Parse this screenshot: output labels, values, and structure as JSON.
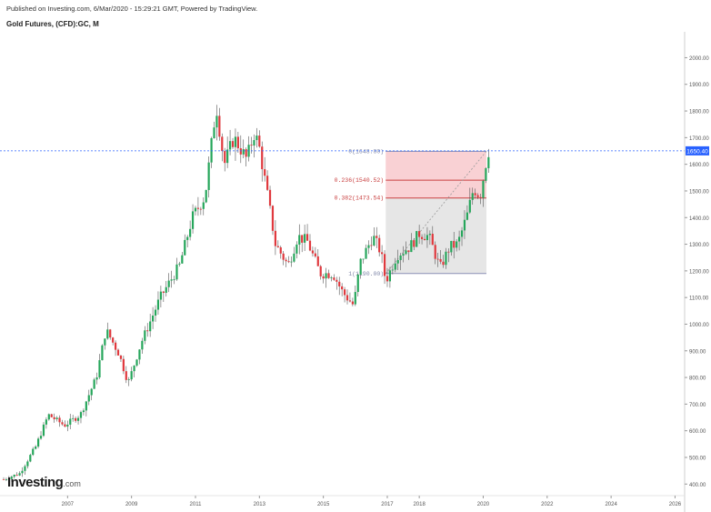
{
  "header": {
    "published": "Published on Investing.com, 6/Mar/2020 - 15:29:21 GMT, Powered by TradingView.",
    "symbol": "Gold Futures, (CFD):GC, M"
  },
  "logo": {
    "main": "Investing",
    "suffix": ".com"
  },
  "chart_data": {
    "type": "candlestick",
    "interval": "monthly",
    "y_axis": {
      "ticks": [
        "400.00",
        "500.00",
        "600.00",
        "700.00",
        "800.00",
        "900.00",
        "1000.00",
        "1100.00",
        "1200.00",
        "1300.00",
        "1400.00",
        "1500.00",
        "1600.00",
        "1700.00",
        "1800.00",
        "1900.00",
        "2000.00"
      ],
      "ylim": [
        360,
        2080
      ]
    },
    "x_axis": {
      "ticks": [
        "2007",
        "2009",
        "2011",
        "2013",
        "2015",
        "2017",
        "2018",
        "2020",
        "2022",
        "2024",
        "2026"
      ],
      "xlim": [
        2005.0,
        2026.3
      ]
    },
    "current_price": {
      "label": "1650.40",
      "value": 1650.4
    },
    "fibonacci": [
      {
        "ratio": "0",
        "price": 1648.8,
        "label": "0(1648.80)"
      },
      {
        "ratio": "0.236",
        "price": 1540.52,
        "label": "0.236(1540.52)"
      },
      {
        "ratio": "0.382",
        "price": 1473.54,
        "label": "0.382(1473.54)"
      },
      {
        "ratio": "1",
        "price": 1190.0,
        "label": "1(1190.00)"
      }
    ],
    "fib_range": {
      "x_start": 2016.95,
      "x_end": 2020.1
    },
    "anchors": [
      [
        2005.0,
        418
      ],
      [
        2005.5,
        440
      ],
      [
        2006.0,
        540
      ],
      [
        2006.4,
        660
      ],
      [
        2006.9,
        620
      ],
      [
        2007.4,
        660
      ],
      [
        2007.9,
        800
      ],
      [
        2008.2,
        980
      ],
      [
        2008.6,
        890
      ],
      [
        2008.9,
        780
      ],
      [
        2009.3,
        930
      ],
      [
        2009.9,
        1100
      ],
      [
        2010.5,
        1220
      ],
      [
        2010.9,
        1400
      ],
      [
        2011.3,
        1480
      ],
      [
        2011.65,
        1820
      ],
      [
        2011.9,
        1600
      ],
      [
        2012.2,
        1700
      ],
      [
        2012.6,
        1620
      ],
      [
        2012.85,
        1720
      ],
      [
        2013.0,
        1660
      ],
      [
        2013.3,
        1450
      ],
      [
        2013.5,
        1300
      ],
      [
        2013.9,
        1220
      ],
      [
        2014.2,
        1330
      ],
      [
        2014.5,
        1310
      ],
      [
        2014.9,
        1190
      ],
      [
        2015.3,
        1190
      ],
      [
        2015.6,
        1120
      ],
      [
        2015.95,
        1070
      ],
      [
        2016.15,
        1230
      ],
      [
        2016.55,
        1330
      ],
      [
        2016.8,
        1270
      ],
      [
        2016.95,
        1160
      ],
      [
        2017.3,
        1260
      ],
      [
        2017.7,
        1290
      ],
      [
        2018.0,
        1340
      ],
      [
        2018.3,
        1330
      ],
      [
        2018.65,
        1210
      ],
      [
        2018.95,
        1290
      ],
      [
        2019.2,
        1300
      ],
      [
        2019.5,
        1410
      ],
      [
        2019.7,
        1510
      ],
      [
        2019.9,
        1480
      ],
      [
        2020.05,
        1580
      ],
      [
        2020.15,
        1650
      ]
    ]
  },
  "colors": {
    "up": "#26a65b",
    "down": "#e0393e",
    "price_line": "#2962ff",
    "price_label_bg": "#2962ff",
    "fib_upper": "#f8c9cc",
    "fib_lower": "#e2e2e2",
    "fib_label": "#c94040"
  }
}
